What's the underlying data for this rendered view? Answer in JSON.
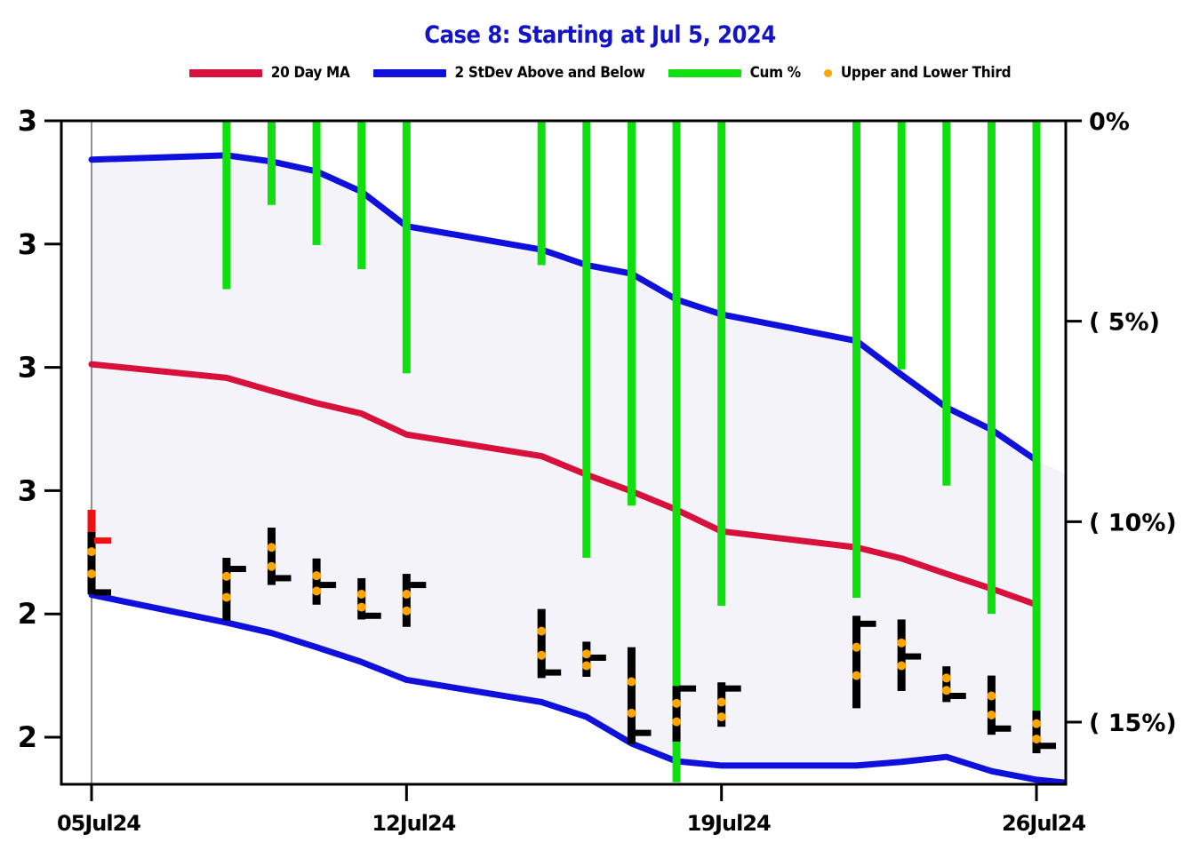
{
  "title": "Case 8:  Starting at  Jul 5, 2024",
  "colors": {
    "title": "#1414c4",
    "ma": "#d8103c",
    "band": "#1010dd",
    "band_fill": "#f3f3f9",
    "cum": "#0fdf0f",
    "dots": "#ffa500",
    "bar": "#000000",
    "bar_red": "#ee1111",
    "start_line": "#909090",
    "axis": "#000000"
  },
  "legend": [
    {
      "label": "20 Day MA",
      "swatch": "line",
      "color": "#d8103c"
    },
    {
      "label": "2 StDev Above and Below",
      "swatch": "line",
      "color": "#1010dd"
    },
    {
      "label": "Cum %",
      "swatch": "line",
      "color": "#0fdf0f"
    },
    {
      "label": "Upper and Lower Third",
      "swatch": "dot",
      "color": "#ffa500"
    }
  ],
  "chart_data": {
    "type": "financial-mixed (hlc bars + MA line + stdev band + cumulative % hanging bars)",
    "start_label": "Starting at Jul 5, 2024",
    "x_axis": {
      "tick_labels": [
        "05Jul24",
        "12Jul24",
        "19Jul24",
        "26Jul24"
      ],
      "tick_day_offsets": [
        0,
        7,
        14,
        21
      ],
      "grid": false
    },
    "left_axis": {
      "tick_labels": [
        "3",
        "3",
        "3",
        "3",
        "2",
        "2"
      ],
      "tick_values": [
        3.2,
        3.0,
        2.8,
        2.6,
        2.4,
        2.2
      ],
      "range": [
        2.124,
        3.2
      ],
      "meaning": "price"
    },
    "right_axis": {
      "tick_labels": [
        "0%",
        "(  5%)",
        "( 10%)",
        "( 15%)"
      ],
      "tick_values": [
        0,
        -5,
        -10,
        -15
      ],
      "range": [
        -16.55,
        0
      ],
      "meaning": "cumulative percent (negative in parentheses)"
    },
    "days": [
      {
        "date": "05Jul24",
        "off": 0,
        "cum": null,
        "ma": 2.805,
        "upper": 3.137,
        "lower": 2.431,
        "high": 2.569,
        "low": 2.432,
        "red_top_to": 2.533,
        "ticks": [
          {
            "p": 2.519,
            "c": "red"
          },
          {
            "p": 2.435,
            "c": "black"
          }
        ],
        "dots": [
          2.501,
          2.465
        ]
      },
      {
        "date": "08Jul24",
        "off": 3,
        "cum": -4.2,
        "ma": 2.783,
        "upper": 3.144,
        "lower": 2.386,
        "high": 2.491,
        "low": 2.389,
        "ticks": [
          {
            "p": 2.473,
            "c": "black"
          }
        ],
        "dots": [
          2.461,
          2.427
        ]
      },
      {
        "date": "09Jul24",
        "off": 4,
        "cum": -2.1,
        "ma": 2.762,
        "upper": 3.134,
        "lower": 2.369,
        "high": 2.54,
        "low": 2.447,
        "ticks": [
          {
            "p": 2.458,
            "c": "black"
          }
        ],
        "dots": [
          2.508,
          2.477
        ]
      },
      {
        "date": "10Jul24",
        "off": 5,
        "cum": -3.1,
        "ma": 2.742,
        "upper": 3.118,
        "lower": 2.346,
        "high": 2.49,
        "low": 2.415,
        "ticks": [
          {
            "p": 2.447,
            "c": "black"
          }
        ],
        "dots": [
          2.462,
          2.437
        ]
      },
      {
        "date": "11Jul24",
        "off": 6,
        "cum": -3.7,
        "ma": 2.725,
        "upper": 3.085,
        "lower": 2.322,
        "high": 2.458,
        "low": 2.391,
        "ticks": [
          {
            "p": 2.397,
            "c": "black"
          }
        ],
        "dots": [
          2.432,
          2.411
        ]
      },
      {
        "date": "12Jul24",
        "off": 7,
        "cum": -6.3,
        "ma": 2.691,
        "upper": 3.029,
        "lower": 2.293,
        "high": 2.465,
        "low": 2.379,
        "ticks": [
          {
            "p": 2.447,
            "c": "black"
          }
        ],
        "dots": [
          2.432,
          2.405
        ]
      },
      {
        "date": "15Jul24",
        "off": 10,
        "cum": -3.6,
        "ma": 2.656,
        "upper": 2.991,
        "lower": 2.257,
        "high": 2.408,
        "low": 2.296,
        "ticks": [
          {
            "p": 2.305,
            "c": "black"
          }
        ],
        "dots": [
          2.372,
          2.333
        ]
      },
      {
        "date": "16Jul24",
        "off": 11,
        "cum": -10.9,
        "ma": 2.626,
        "upper": 2.966,
        "lower": 2.233,
        "high": 2.355,
        "low": 2.298,
        "ticks": [
          {
            "p": 2.329,
            "c": "black"
          }
        ],
        "dots": [
          2.335,
          2.316
        ]
      },
      {
        "date": "17Jul24",
        "off": 12,
        "cum": -9.6,
        "ma": 2.599,
        "upper": 2.952,
        "lower": 2.19,
        "high": 2.346,
        "low": 2.189,
        "ticks": [
          {
            "p": 2.207,
            "c": "black"
          }
        ],
        "dots": [
          2.29,
          2.239
        ]
      },
      {
        "date": "18Jul24",
        "off": 13,
        "cum": -16.5,
        "ma": 2.569,
        "upper": 2.91,
        "lower": 2.161,
        "high": 2.283,
        "low": 2.193,
        "ticks": [
          {
            "p": 2.279,
            "c": "black"
          }
        ],
        "dots": [
          2.255,
          2.225
        ]
      },
      {
        "date": "19Jul24",
        "off": 14,
        "cum": -12.1,
        "ma": 2.534,
        "upper": 2.886,
        "lower": 2.154,
        "high": 2.289,
        "low": 2.217,
        "ticks": [
          {
            "p": 2.279,
            "c": "black"
          }
        ],
        "dots": [
          2.257,
          2.233
        ]
      },
      {
        "date": "22Jul24",
        "off": 17,
        "cum": -11.9,
        "ma": 2.508,
        "upper": 2.843,
        "lower": 2.154,
        "high": 2.397,
        "low": 2.247,
        "ticks": [
          {
            "p": 2.384,
            "c": "black"
          }
        ],
        "dots": [
          2.346,
          2.3
        ]
      },
      {
        "date": "23Jul24",
        "off": 18,
        "cum": -6.2,
        "ma": 2.49,
        "upper": 2.788,
        "lower": 2.16,
        "high": 2.391,
        "low": 2.275,
        "ticks": [
          {
            "p": 2.331,
            "c": "black"
          }
        ],
        "dots": [
          2.353,
          2.316
        ]
      },
      {
        "date": "24Jul24",
        "off": 19,
        "cum": -9.1,
        "ma": 2.465,
        "upper": 2.735,
        "lower": 2.168,
        "high": 2.315,
        "low": 2.257,
        "ticks": [
          {
            "p": 2.267,
            "c": "black"
          }
        ],
        "dots": [
          2.296,
          2.276
        ]
      },
      {
        "date": "25Jul24",
        "off": 20,
        "cum": -12.3,
        "ma": 2.441,
        "upper": 2.699,
        "lower": 2.145,
        "high": 2.3,
        "low": 2.204,
        "ticks": [
          {
            "p": 2.214,
            "c": "black"
          }
        ],
        "dots": [
          2.267,
          2.236
        ]
      },
      {
        "date": "26Jul24",
        "off": 21,
        "cum": -15.7,
        "ma": 2.415,
        "upper": 2.649,
        "lower": 2.131,
        "high": 2.243,
        "low": 2.174,
        "ticks": [
          {
            "p": 2.186,
            "c": "black"
          }
        ],
        "dots": [
          2.222,
          2.197
        ]
      }
    ]
  }
}
